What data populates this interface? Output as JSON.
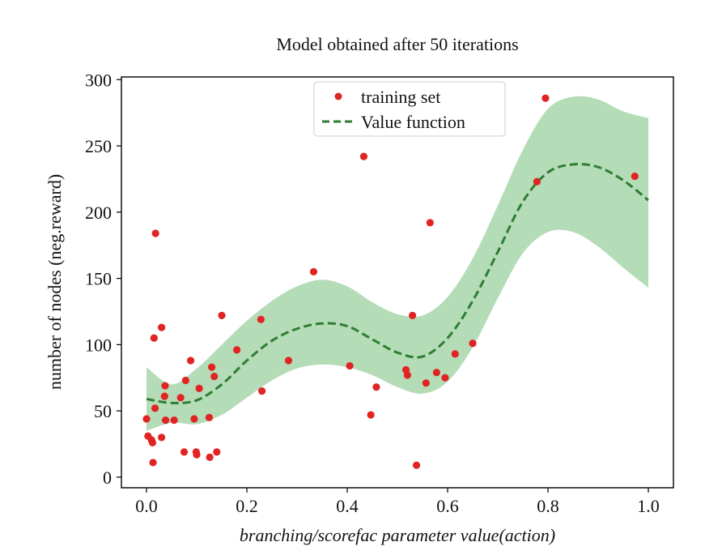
{
  "chart_data": {
    "type": "scatter",
    "title": "Model obtained after 50 iterations",
    "xlabel": "branching/scorefac parameter value(action)",
    "ylabel": "number of nodes (neg.reward)",
    "xlim": [
      -0.05,
      1.05
    ],
    "ylim": [
      -8,
      302
    ],
    "xticks": [
      0.0,
      0.2,
      0.4,
      0.6,
      0.8,
      1.0
    ],
    "xtick_labels": [
      "0.0",
      "0.2",
      "0.4",
      "0.6",
      "0.8",
      "1.0"
    ],
    "yticks": [
      0,
      50,
      100,
      150,
      200,
      250,
      300
    ],
    "ytick_labels": [
      "0",
      "50",
      "100",
      "150",
      "200",
      "250",
      "300"
    ],
    "legend": {
      "position": "top-center",
      "entries": [
        {
          "label": "training set",
          "kind": "marker",
          "color": "#e02424"
        },
        {
          "label": "Value function",
          "kind": "dashed-line",
          "color": "#2e7d32"
        }
      ]
    },
    "colors": {
      "points": "#e02424",
      "value_function": "#2e7d32",
      "band": "#b4dcb7"
    },
    "series": [
      {
        "name": "training set",
        "kind": "scatter",
        "points": [
          {
            "x": 0.0,
            "y": 44
          },
          {
            "x": 0.003,
            "y": 31
          },
          {
            "x": 0.01,
            "y": 28
          },
          {
            "x": 0.012,
            "y": 26
          },
          {
            "x": 0.013,
            "y": 11
          },
          {
            "x": 0.015,
            "y": 105
          },
          {
            "x": 0.017,
            "y": 52
          },
          {
            "x": 0.018,
            "y": 184
          },
          {
            "x": 0.03,
            "y": 30
          },
          {
            "x": 0.03,
            "y": 113
          },
          {
            "x": 0.036,
            "y": 61
          },
          {
            "x": 0.037,
            "y": 69
          },
          {
            "x": 0.038,
            "y": 43
          },
          {
            "x": 0.055,
            "y": 43
          },
          {
            "x": 0.068,
            "y": 60
          },
          {
            "x": 0.075,
            "y": 19
          },
          {
            "x": 0.078,
            "y": 73
          },
          {
            "x": 0.088,
            "y": 88
          },
          {
            "x": 0.095,
            "y": 44
          },
          {
            "x": 0.099,
            "y": 19
          },
          {
            "x": 0.1,
            "y": 17
          },
          {
            "x": 0.105,
            "y": 67
          },
          {
            "x": 0.125,
            "y": 45
          },
          {
            "x": 0.126,
            "y": 15
          },
          {
            "x": 0.13,
            "y": 83
          },
          {
            "x": 0.135,
            "y": 76
          },
          {
            "x": 0.14,
            "y": 19
          },
          {
            "x": 0.15,
            "y": 122
          },
          {
            "x": 0.18,
            "y": 96
          },
          {
            "x": 0.228,
            "y": 119
          },
          {
            "x": 0.23,
            "y": 65
          },
          {
            "x": 0.283,
            "y": 88
          },
          {
            "x": 0.333,
            "y": 155
          },
          {
            "x": 0.405,
            "y": 84
          },
          {
            "x": 0.433,
            "y": 242
          },
          {
            "x": 0.447,
            "y": 47
          },
          {
            "x": 0.458,
            "y": 68
          },
          {
            "x": 0.517,
            "y": 81
          },
          {
            "x": 0.52,
            "y": 77
          },
          {
            "x": 0.53,
            "y": 122
          },
          {
            "x": 0.538,
            "y": 9
          },
          {
            "x": 0.557,
            "y": 71
          },
          {
            "x": 0.565,
            "y": 192
          },
          {
            "x": 0.578,
            "y": 79
          },
          {
            "x": 0.595,
            "y": 75
          },
          {
            "x": 0.615,
            "y": 93
          },
          {
            "x": 0.65,
            "y": 101
          },
          {
            "x": 0.778,
            "y": 223
          },
          {
            "x": 0.795,
            "y": 286
          },
          {
            "x": 0.973,
            "y": 227
          }
        ]
      },
      {
        "name": "Value function",
        "kind": "line",
        "x": [
          0.0,
          0.05,
          0.1,
          0.15,
          0.2,
          0.25,
          0.3,
          0.35,
          0.4,
          0.45,
          0.5,
          0.55,
          0.6,
          0.65,
          0.7,
          0.75,
          0.8,
          0.85,
          0.9,
          0.95,
          1.0
        ],
        "y": [
          59,
          56,
          58,
          70,
          88,
          103,
          112,
          116,
          114,
          104,
          94,
          91,
          105,
          133,
          170,
          208,
          230,
          236,
          234,
          224,
          209
        ],
        "upper": [
          83,
          70,
          82,
          100,
          118,
          133,
          144,
          149,
          144,
          132,
          123,
          122,
          136,
          165,
          205,
          247,
          278,
          287,
          285,
          276,
          271
        ],
        "lower": [
          35,
          41,
          40,
          47,
          60,
          73,
          82,
          85,
          83,
          77,
          68,
          63,
          72,
          98,
          135,
          169,
          185,
          185,
          174,
          158,
          143
        ]
      }
    ]
  }
}
